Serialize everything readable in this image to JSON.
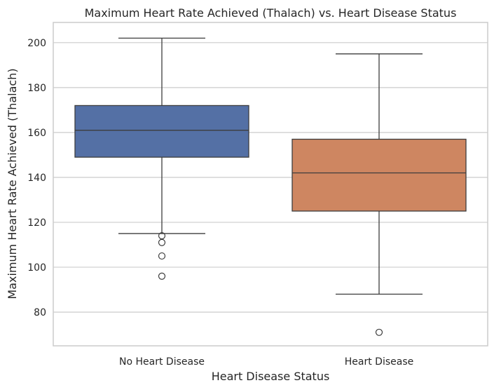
{
  "chart_data": {
    "type": "box",
    "title": "Maximum Heart Rate Achieved (Thalach) vs. Heart Disease Status",
    "xlabel": "Heart Disease Status",
    "ylabel": "Maximum Heart Rate Achieved (Thalach)",
    "ylim": [
      65,
      209
    ],
    "yticks": [
      80,
      100,
      120,
      140,
      160,
      180,
      200
    ],
    "grid": "horizontal",
    "categories": [
      "No Heart Disease",
      "Heart Disease"
    ],
    "boxes": [
      {
        "category": "No Heart Disease",
        "color": "#5470a5",
        "whisker_low": 115,
        "q1": 149,
        "median": 161,
        "q3": 172,
        "whisker_high": 202,
        "outliers": [
          114,
          111,
          105,
          96
        ]
      },
      {
        "category": "Heart Disease",
        "color": "#ce8661",
        "whisker_low": 88,
        "q1": 125,
        "median": 142,
        "q3": 157,
        "whisker_high": 195,
        "outliers": [
          71
        ]
      }
    ]
  }
}
